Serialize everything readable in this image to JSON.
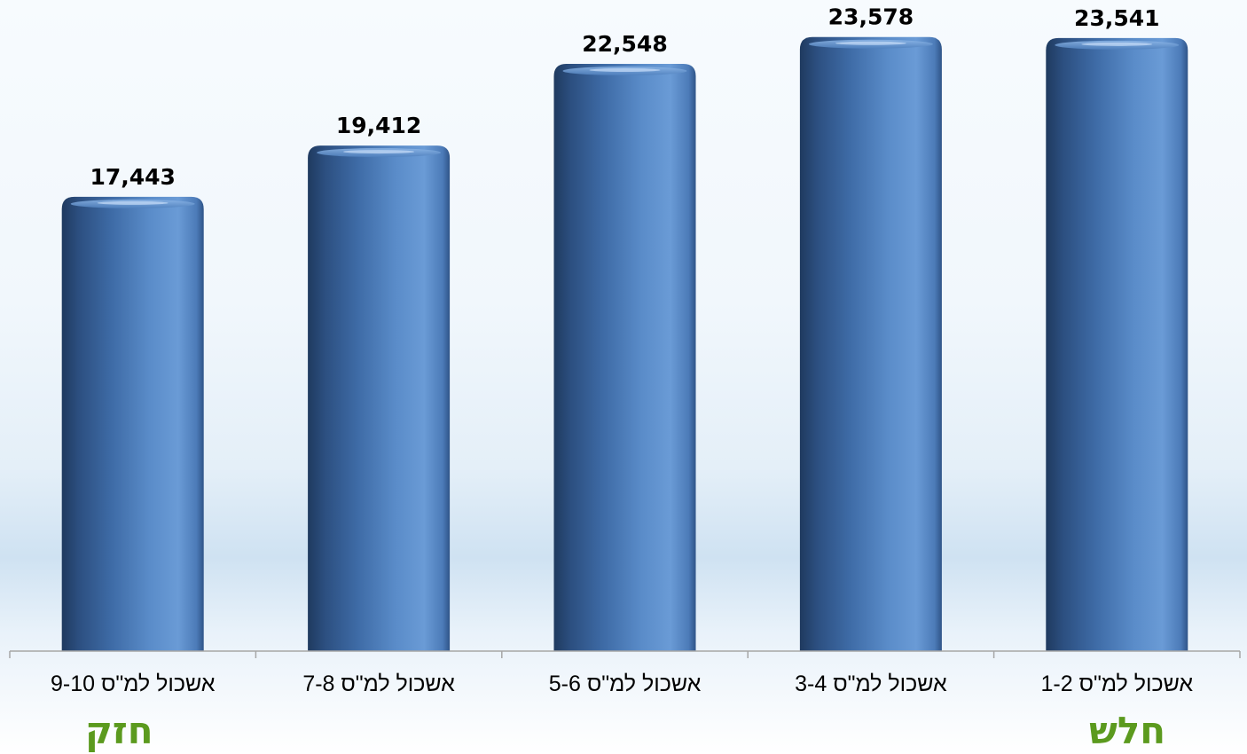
{
  "chart_data": {
    "type": "bar",
    "categories": [
      "אשכול למ\"ס 9-10",
      "אשכול למ\"ס 7-8",
      "אשכול למ\"ס 5-6",
      "אשכול למ\"ס 3-4",
      "אשכול למ\"ס 1-2"
    ],
    "values": [
      17443,
      19412,
      22548,
      23578,
      23541
    ],
    "value_labels": [
      "17,443",
      "19,412",
      "22,548",
      "23,578",
      "23,541"
    ],
    "title": "",
    "xlabel": "",
    "ylabel": "",
    "ylim": [
      0,
      25000
    ],
    "grid": false,
    "legend": "none",
    "colors": {
      "bar_dark": "#1f3a5f",
      "bar_mid": "#3f6ea8",
      "bar_light": "#6a9bd6",
      "axis": "#a6a6a6",
      "label_text": "#000000",
      "end_label": "#5b9a1e"
    }
  },
  "end_labels": {
    "left": "חזק",
    "right": "חלש"
  }
}
